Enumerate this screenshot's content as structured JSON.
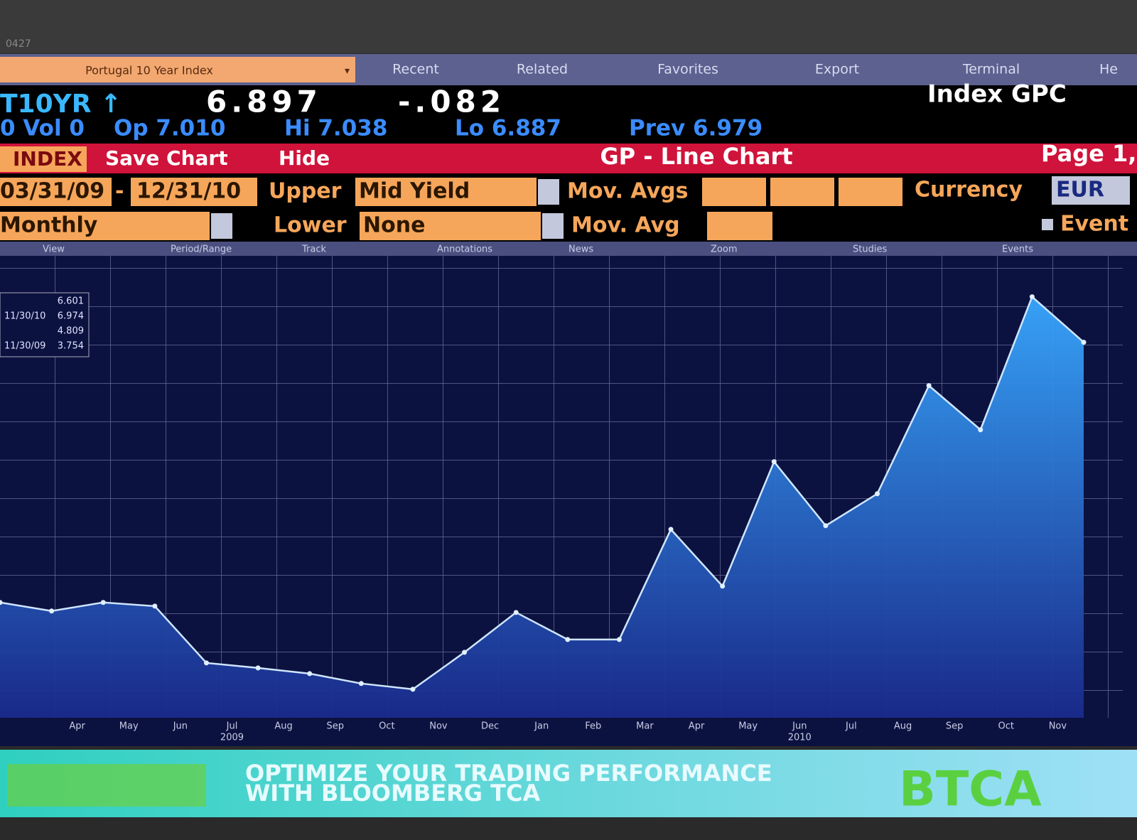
{
  "screen_id": "0427",
  "menu": {
    "security": "Portugal 10 Year Index",
    "items": [
      "Recent",
      "Related",
      "Favorites",
      "Export",
      "Terminal",
      "He"
    ]
  },
  "ticker": {
    "symbol": "T10YR ↑",
    "last": "6.897",
    "change": "-.082",
    "name": "Index GPC",
    "stats": [
      "0 Vol 0",
      "Op 7.010",
      "Hi 7.038",
      "Lo 6.887",
      "Prev 6.979"
    ]
  },
  "title_bar": {
    "index": "INDEX",
    "buttons": [
      "Save Chart",
      "Hide"
    ],
    "title": "GP - Line Chart",
    "page": "Page 1,"
  },
  "controls": {
    "start_date": "03/31/09",
    "separator": "-",
    "end_date": "12/31/10",
    "upper_label": "Upper",
    "upper_value": "Mid Yield",
    "mov_avgs_label": "Mov. Avgs",
    "currency_label": "Currency",
    "currency": "EUR",
    "period": "Monthly",
    "lower_label": "Lower",
    "lower_value": "None",
    "mov_avg_label": "Mov. Avg",
    "events_label": "Event"
  },
  "toolbar": [
    "View",
    "Period/Range",
    "Track",
    "Annotations",
    "News",
    "Zoom",
    "Studies",
    "Events"
  ],
  "chart_data": {
    "type": "area",
    "categories": [
      null,
      "Apr",
      "May",
      "Jun",
      "Jul",
      "Aug",
      "Sep",
      "Oct",
      "Nov",
      "Dec",
      "Jan",
      "Feb",
      "Mar",
      "Apr",
      "May",
      "Jun",
      "Jul",
      "Aug",
      "Sep",
      "Oct",
      "Nov",
      null
    ],
    "x_sublabels": [
      null,
      null,
      null,
      null,
      "2009",
      null,
      null,
      null,
      null,
      null,
      null,
      null,
      null,
      null,
      null,
      "2010",
      null,
      null,
      null,
      null,
      null,
      null
    ],
    "values": [
      4.466,
      4.396,
      4.466,
      4.436,
      3.97,
      3.929,
      3.882,
      3.801,
      3.754,
      4.057,
      4.384,
      4.162,
      4.162,
      5.066,
      4.6,
      5.621,
      5.096,
      5.358,
      6.245,
      5.883,
      6.974,
      6.601
    ],
    "color": "#2f8fe8",
    "ylim": [
      3.52,
      7.31
    ],
    "grid": true,
    "legend_box": [
      {
        "value": 6.601
      },
      {
        "date": "11/30/10",
        "value": 6.974
      },
      {
        "value": 4.809
      },
      {
        "date": "11/30/09",
        "value": 3.754
      }
    ]
  },
  "banner": {
    "lines": [
      "OPTIMIZE YOUR TRADING PERFORMANCE",
      "WITH BLOOMBERG TCA"
    ],
    "logo": "BTCA"
  }
}
